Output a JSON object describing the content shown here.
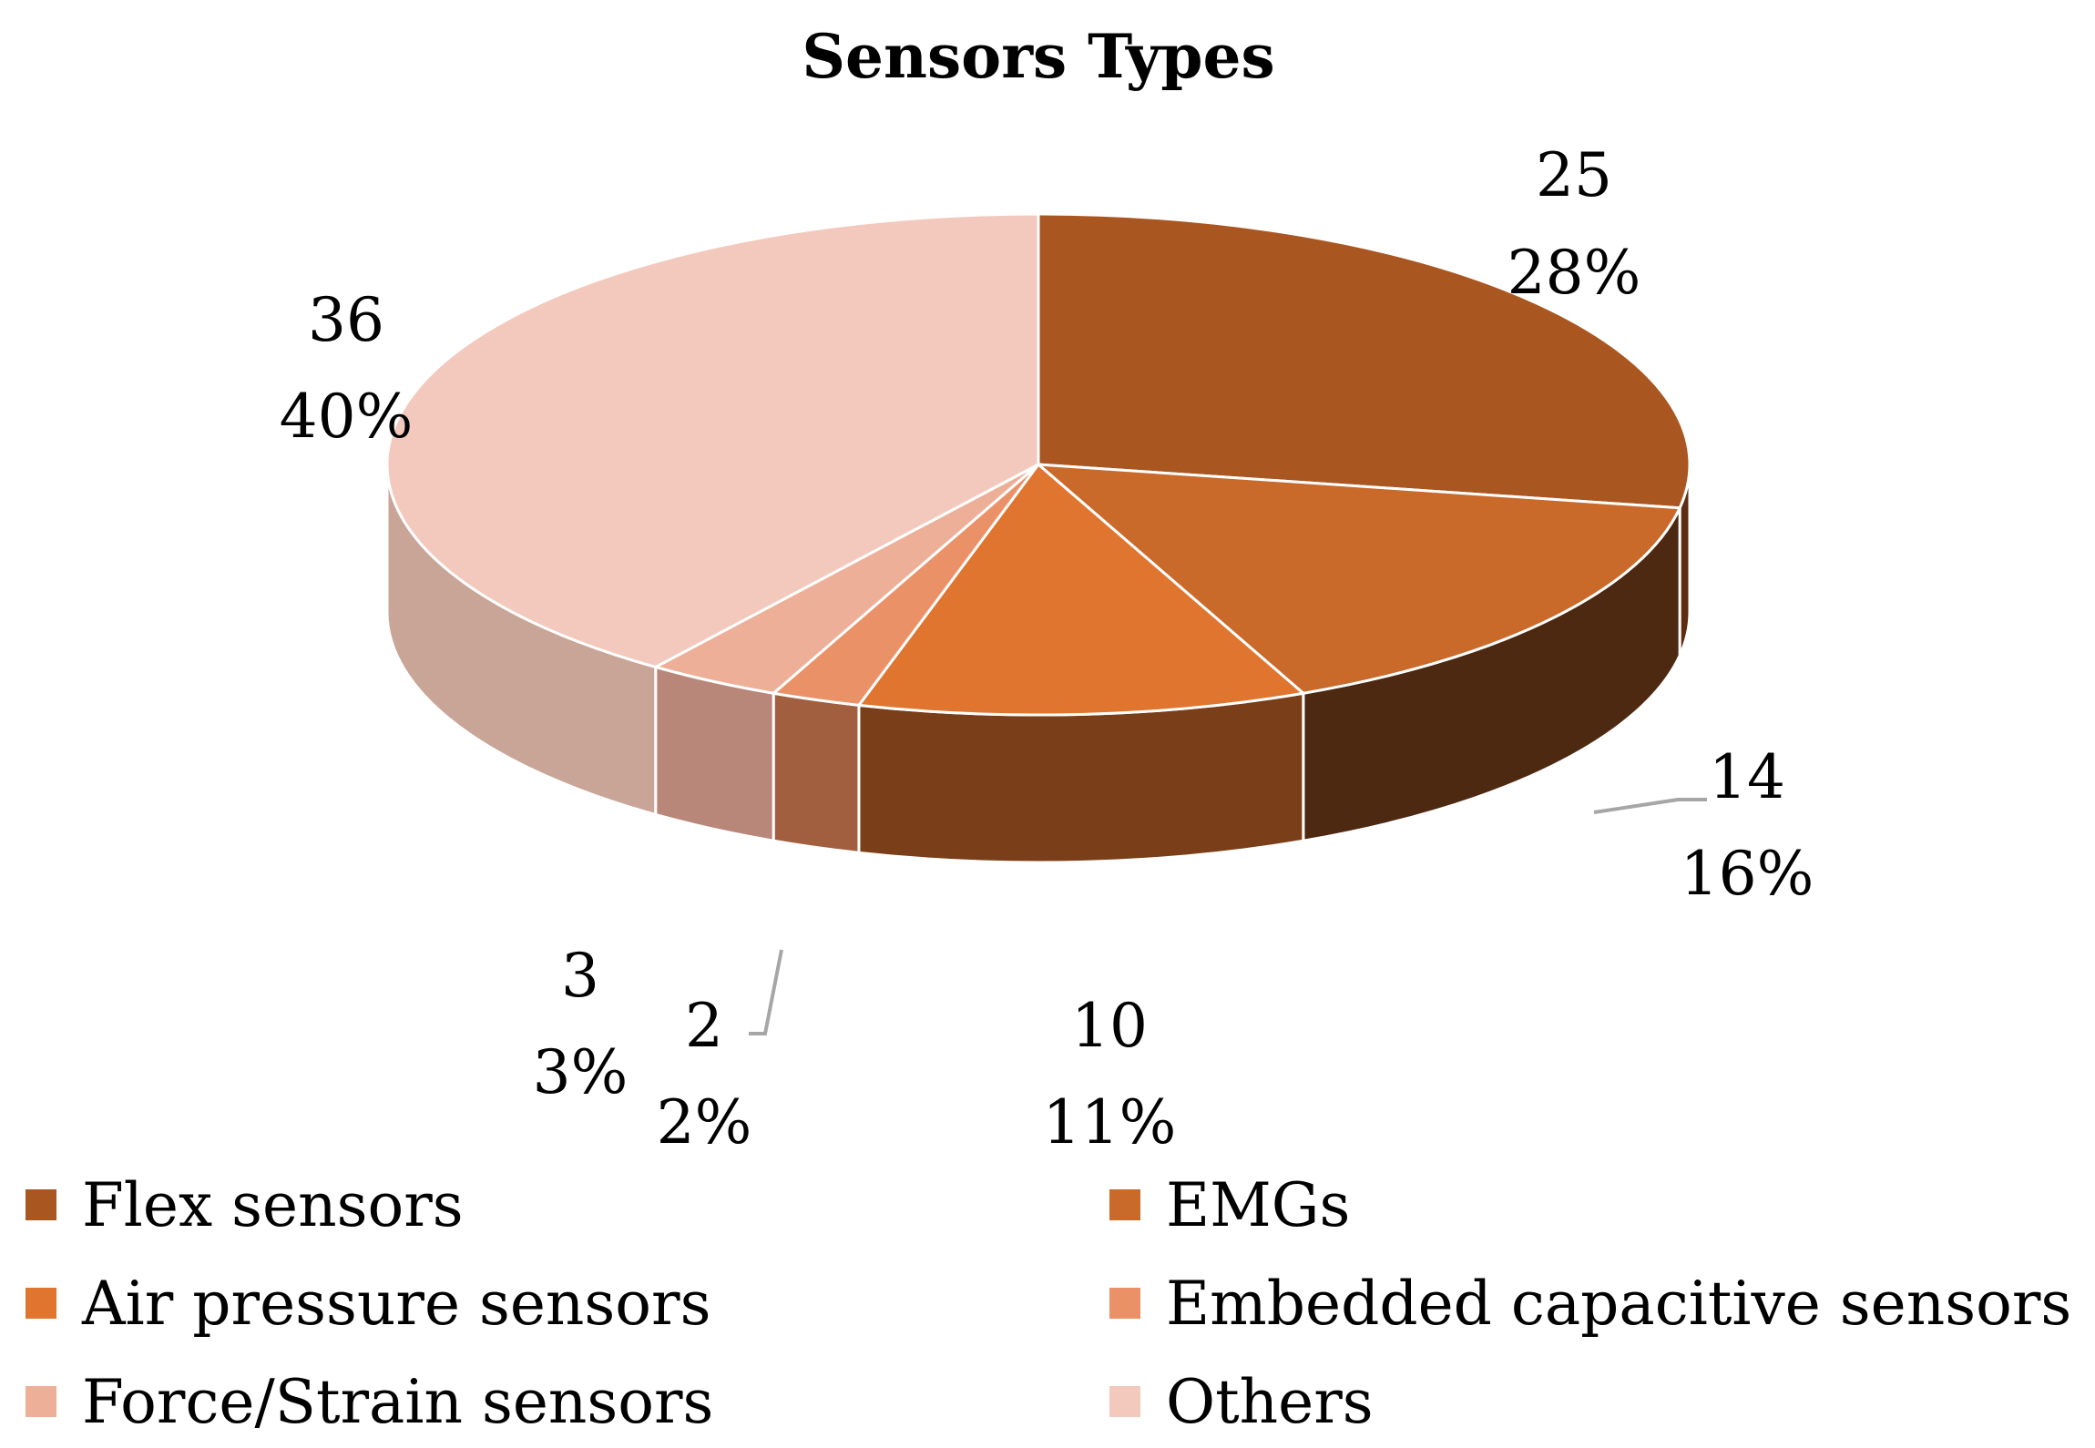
{
  "chart_data": {
    "type": "pie",
    "style": "3d",
    "title": "Sensors Types",
    "legend_position": "bottom",
    "slices": [
      {
        "name": "Flex sensors",
        "value": 25,
        "percent_label": "28%",
        "value_label": "25",
        "color": "#a95621",
        "side_color": "#5e2c10"
      },
      {
        "name": "EMGs",
        "value": 14,
        "percent_label": "16%",
        "value_label": "14",
        "color": "#c9692a",
        "side_color": "#4e2912"
      },
      {
        "name": "Air pressure sensors",
        "value": 10,
        "percent_label": "11%",
        "value_label": "10",
        "color": "#df752e",
        "side_color": "#7a3f18"
      },
      {
        "name": "Embedded capacitive sensors",
        "value": 2,
        "percent_label": "2%",
        "value_label": "2",
        "color": "#ea9168",
        "side_color": "#a15f40"
      },
      {
        "name": "Force/Strain sensors",
        "value": 3,
        "percent_label": "3%",
        "value_label": "3",
        "color": "#edaf97",
        "side_color": "#b8877a"
      },
      {
        "name": "Others",
        "value": 36,
        "percent_label": "40%",
        "value_label": "36",
        "color": "#f3c9bd",
        "side_color": "#c9a597"
      }
    ]
  }
}
